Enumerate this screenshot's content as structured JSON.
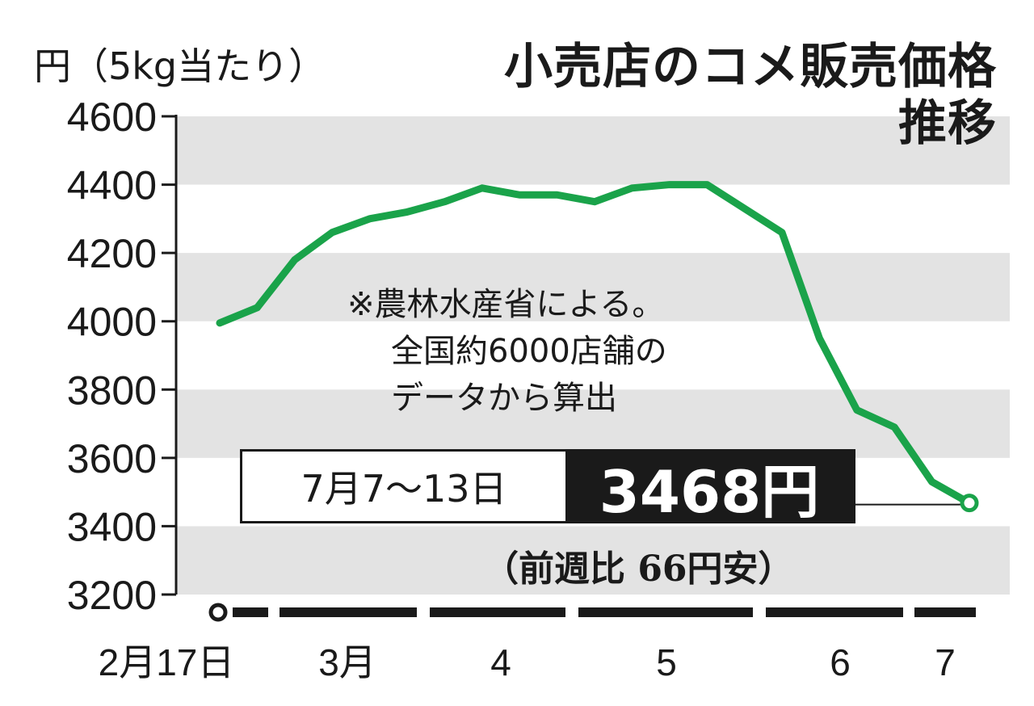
{
  "chart_data": {
    "type": "line",
    "title_lines": [
      "小売店のコメ販売価格",
      "推移"
    ],
    "ylabel": "円（5kg当たり）",
    "ylim": [
      3200,
      4600
    ],
    "yticks": [
      4600,
      4400,
      4200,
      4000,
      3800,
      3600,
      3400,
      3200
    ],
    "ytick_labels": [
      "4600",
      "4400",
      "4200",
      "4000",
      "3800",
      "3600",
      "3400",
      "3200"
    ],
    "xtick_labels": [
      "2月17日",
      "3月",
      "4",
      "5",
      "6",
      "7"
    ],
    "series": [
      {
        "color": "#1aa34a",
        "x": [
          "2025-02-17",
          "2025-02-24",
          "2025-03-03",
          "2025-03-10",
          "2025-03-17",
          "2025-03-24",
          "2025-03-31",
          "2025-04-07",
          "2025-04-14",
          "2025-04-21",
          "2025-04-28",
          "2025-05-05",
          "2025-05-12",
          "2025-05-19",
          "2025-05-26",
          "2025-06-02",
          "2025-06-09",
          "2025-06-16",
          "2025-06-23",
          "2025-06-30",
          "2025-07-07"
        ],
        "values": [
          3995,
          4040,
          4180,
          4260,
          4300,
          4320,
          4350,
          4390,
          4370,
          4370,
          4350,
          4390,
          4400,
          4400,
          4330,
          4260,
          3950,
          3740,
          3690,
          3530,
          3468
        ]
      }
    ],
    "grid": "alternating horizontal bands",
    "annotation_note": [
      "※農林水産省による。",
      "全国約6000店舗の",
      "データから算出"
    ],
    "callout": {
      "period": "7月7〜13日",
      "price": "3468円",
      "change": "（前週比 66円安）"
    }
  }
}
